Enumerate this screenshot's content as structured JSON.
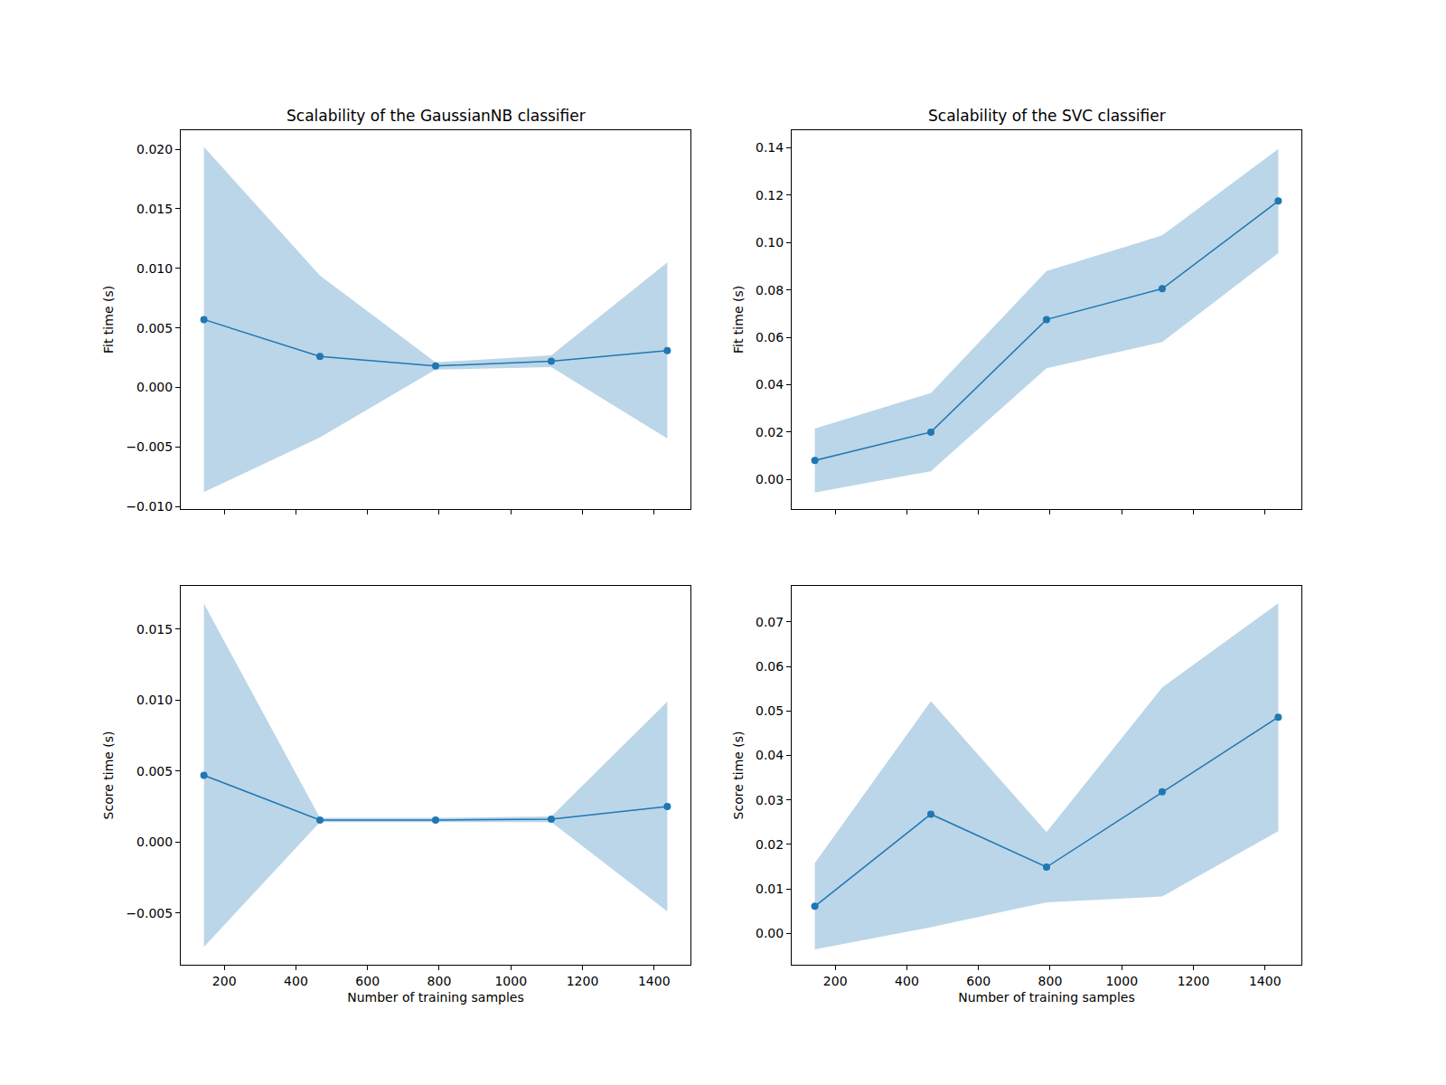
{
  "chart_data": [
    {
      "type": "line",
      "title": "Scalability of the GaussianNB classifier",
      "y_label": "Fit time (s)",
      "x": [
        143,
        467,
        790,
        1113,
        1437
      ],
      "values": [
        0.0057,
        0.0026,
        0.0018,
        0.0022,
        0.0031
      ],
      "error": [
        0.0145,
        0.0068,
        0.0003,
        0.0005,
        0.0074
      ],
      "color": "#1f77b4",
      "marker": "circle",
      "line_style": "solid",
      "tick_labels": "y",
      "xlim": [
        78.35,
        1501.65
      ],
      "xticks": [
        200,
        400,
        600,
        800,
        1000,
        1200,
        1400
      ],
      "ylim": [
        -0.0102,
        0.0216
      ],
      "yticks": [
        {
          "value": -0.01,
          "label": "−0.010"
        },
        {
          "value": -0.005,
          "label": "−0.005"
        },
        {
          "value": 0,
          "label": "0.000"
        },
        {
          "value": 0.005,
          "label": "0.005"
        },
        {
          "value": 0.01,
          "label": "0.010"
        },
        {
          "value": 0.015,
          "label": "0.015"
        },
        {
          "value": 0.02,
          "label": "0.020"
        }
      ]
    },
    {
      "type": "line",
      "title": "Scalability of the SVC classifier",
      "y_label": "Fit time (s)",
      "x": [
        143,
        467,
        790,
        1113,
        1437
      ],
      "values": [
        0.008,
        0.02,
        0.0675,
        0.0805,
        0.1175
      ],
      "error": [
        0.0135,
        0.0165,
        0.0205,
        0.0225,
        0.022
      ],
      "color": "#1f77b4",
      "marker": "circle",
      "line_style": "solid",
      "tick_labels": "y",
      "xlim": [
        78.35,
        1501.65
      ],
      "xticks": [
        200,
        400,
        600,
        800,
        1000,
        1200,
        1400
      ],
      "ylim": [
        -0.0124,
        0.1474
      ],
      "yticks": [
        {
          "value": 0,
          "label": "0.00"
        },
        {
          "value": 0.02,
          "label": "0.02"
        },
        {
          "value": 0.04,
          "label": "0.04"
        },
        {
          "value": 0.06,
          "label": "0.06"
        },
        {
          "value": 0.08,
          "label": "0.08"
        },
        {
          "value": 0.1,
          "label": "0.10"
        },
        {
          "value": 0.12,
          "label": "0.12"
        },
        {
          "value": 0.14,
          "label": "0.14"
        }
      ]
    },
    {
      "type": "line",
      "y_label": "Score time (s)",
      "x_label": "Number of training samples",
      "x": [
        143,
        467,
        790,
        1113,
        1437
      ],
      "values": [
        0.0047,
        0.00155,
        0.00155,
        0.0016,
        0.0025
      ],
      "error": [
        0.0121,
        0.00015,
        0.00015,
        0.0002,
        0.0074
      ],
      "color": "#1f77b4",
      "marker": "circle",
      "line_style": "solid",
      "xlim": [
        78.35,
        1501.65
      ],
      "xticks": [
        200,
        400,
        600,
        800,
        1000,
        1200,
        1400
      ],
      "ylim": [
        -0.00864,
        0.01805
      ],
      "yticks": [
        {
          "value": -0.005,
          "label": "−0.005"
        },
        {
          "value": 0,
          "label": "0.000"
        },
        {
          "value": 0.005,
          "label": "0.005"
        },
        {
          "value": 0.01,
          "label": "0.010"
        },
        {
          "value": 0.015,
          "label": "0.015"
        }
      ]
    },
    {
      "type": "line",
      "y_label": "Score time (s)",
      "x_label": "Number of training samples",
      "x": [
        143,
        467,
        790,
        1113,
        1437
      ],
      "values": [
        0.0061,
        0.0268,
        0.0149,
        0.0318,
        0.0486
      ],
      "error": [
        0.0097,
        0.0254,
        0.0079,
        0.0235,
        0.0256
      ],
      "color": "#1f77b4",
      "marker": "circle",
      "line_style": "solid",
      "xlim": [
        78.35,
        1501.65
      ],
      "xticks": [
        200,
        400,
        600,
        800,
        1000,
        1200,
        1400
      ],
      "ylim": [
        -0.007,
        0.0781
      ],
      "yticks": [
        {
          "value": 0,
          "label": "0.00"
        },
        {
          "value": 0.01,
          "label": "0.01"
        },
        {
          "value": 0.02,
          "label": "0.02"
        },
        {
          "value": 0.03,
          "label": "0.03"
        },
        {
          "value": 0.04,
          "label": "0.04"
        },
        {
          "value": 0.05,
          "label": "0.05"
        },
        {
          "value": 0.06,
          "label": "0.06"
        },
        {
          "value": 0.07,
          "label": "0.07"
        }
      ]
    }
  ]
}
